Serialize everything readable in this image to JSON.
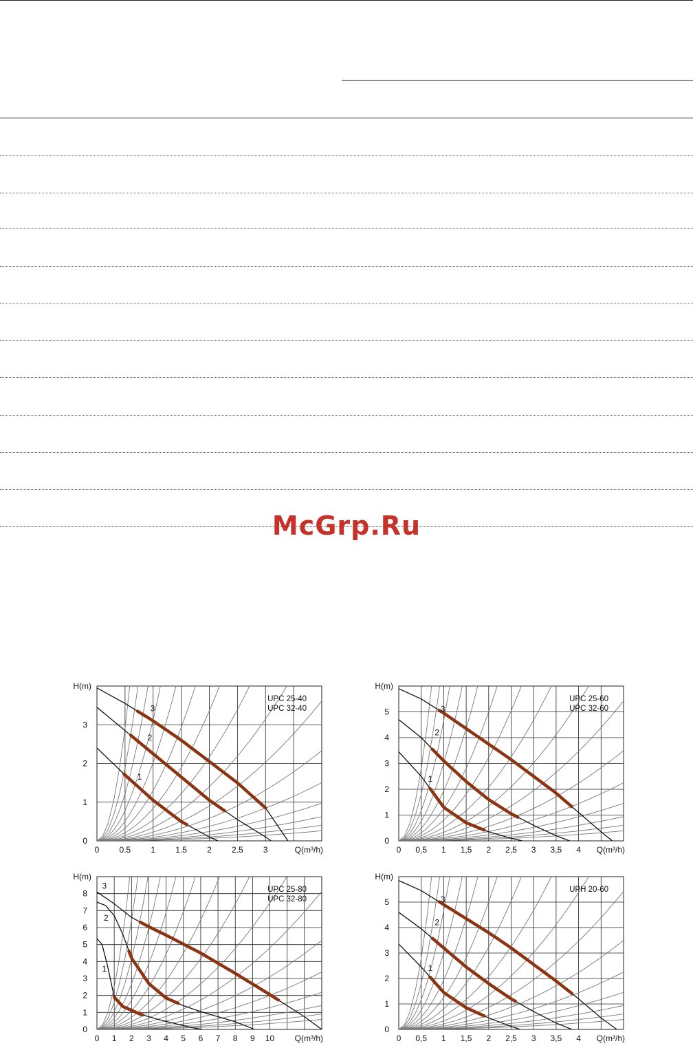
{
  "watermark": "McGrp.Ru",
  "colors": {
    "curve": "#111111",
    "system_line": "#777777",
    "working_band": "#8a3412",
    "grid": "#222222"
  },
  "chart_data": [
    {
      "type": "line",
      "title": "UPC 25-40\nUPC 32-40",
      "ylabel": "H(m)",
      "xlabel": "Q(m³/h)",
      "xlim": [
        0,
        4
      ],
      "ylim": [
        0,
        4.0
      ],
      "xticks": [
        0,
        0.5,
        1,
        1.5,
        2,
        2.5,
        3
      ],
      "xtick_labels": [
        "0",
        "0.5",
        "1",
        "1.5",
        "2",
        "2.5",
        "3"
      ],
      "yticks": [
        0,
        1,
        2,
        3
      ],
      "series": [
        {
          "name": "3",
          "x": [
            0,
            0.5,
            1,
            1.5,
            2,
            2.5,
            3,
            3.4
          ],
          "y": [
            3.95,
            3.55,
            3.1,
            2.6,
            2.05,
            1.5,
            0.85,
            0.0
          ]
        },
        {
          "name": "2",
          "x": [
            0,
            0.5,
            1,
            1.5,
            2,
            2.5,
            3,
            3.1
          ],
          "y": [
            3.45,
            2.85,
            2.25,
            1.65,
            1.05,
            0.55,
            0.1,
            0.0
          ]
        },
        {
          "name": "1",
          "x": [
            0,
            0.5,
            1,
            1.5,
            2,
            2.15
          ],
          "y": [
            2.4,
            1.7,
            1.05,
            0.5,
            0.1,
            0.0
          ]
        }
      ],
      "bands": [
        {
          "series": "3",
          "x": [
            0.72,
            3.0
          ],
          "label_at": [
            0.95,
            3.35
          ]
        },
        {
          "series": "2",
          "x": [
            0.6,
            2.27
          ],
          "label_at": [
            0.9,
            2.6
          ]
        },
        {
          "series": "1",
          "x": [
            0.48,
            1.6
          ],
          "label_at": [
            0.72,
            1.58
          ]
        }
      ]
    },
    {
      "type": "line",
      "title": "UPC 25-60\nUPC 32-60",
      "ylabel": "H(m)",
      "xlabel": "Q(m³/h)",
      "xlim": [
        0,
        5
      ],
      "ylim": [
        0,
        6.0
      ],
      "xticks": [
        0,
        0.5,
        1,
        1.5,
        2,
        2.5,
        3,
        3.5,
        4
      ],
      "xtick_labels": [
        "0",
        "0,5",
        "1",
        "1,5",
        "2",
        "2,5",
        "3",
        "3,5",
        "4"
      ],
      "yticks": [
        0,
        1,
        2,
        3,
        4,
        5
      ],
      "series": [
        {
          "name": "3",
          "x": [
            0,
            0.5,
            1,
            1.5,
            2,
            2.5,
            3,
            3.5,
            4,
            4.5,
            4.75
          ],
          "y": [
            5.9,
            5.5,
            4.95,
            4.35,
            3.75,
            3.15,
            2.5,
            1.85,
            1.1,
            0.35,
            0.0
          ]
        },
        {
          "name": "2",
          "x": [
            0,
            0.5,
            1,
            1.5,
            2,
            2.5,
            3,
            3.5,
            3.8
          ],
          "y": [
            4.7,
            4.0,
            3.1,
            2.3,
            1.6,
            1.05,
            0.6,
            0.2,
            0.0
          ]
        },
        {
          "name": "1",
          "x": [
            0,
            0.5,
            1,
            1.5,
            2,
            2.5,
            2.75
          ],
          "y": [
            3.45,
            2.5,
            1.3,
            0.7,
            0.35,
            0.1,
            0.0
          ]
        }
      ],
      "bands": [
        {
          "series": "3",
          "x": [
            0.9,
            3.85
          ],
          "label_at": [
            0.93,
            5.0
          ]
        },
        {
          "series": "2",
          "x": [
            0.75,
            2.65
          ],
          "label_at": [
            0.8,
            4.1
          ]
        },
        {
          "series": "1",
          "x": [
            0.7,
            1.9
          ],
          "label_at": [
            0.65,
            2.3
          ]
        }
      ]
    },
    {
      "type": "line",
      "title": "UPC 25-80\nUPC 32-80",
      "ylabel": "H(m)",
      "xlabel": "Q(m³/h)",
      "xlim": [
        0,
        13
      ],
      "ylim": [
        0,
        9.0
      ],
      "xticks": [
        0,
        1,
        2,
        3,
        4,
        5,
        6,
        7,
        8,
        9,
        10
      ],
      "xtick_labels": [
        "0",
        "1",
        "2",
        "3",
        "4",
        "5",
        "6",
        "7",
        "8",
        "9",
        "10"
      ],
      "yticks": [
        0,
        1,
        2,
        3,
        4,
        5,
        6,
        7,
        8
      ],
      "series": [
        {
          "name": "3",
          "x": [
            0,
            1,
            2,
            3,
            4,
            6,
            8,
            10,
            12,
            13
          ],
          "y": [
            8.1,
            7.4,
            6.6,
            6.05,
            5.55,
            4.5,
            3.3,
            2.05,
            0.75,
            0.0
          ]
        },
        {
          "name": "2",
          "x": [
            0,
            0.5,
            1,
            1.5,
            2,
            3,
            4,
            5,
            6,
            7,
            8,
            9,
            9.1
          ],
          "y": [
            7.5,
            7.3,
            6.7,
            5.6,
            4.2,
            2.7,
            1.85,
            1.4,
            1.05,
            0.75,
            0.45,
            0.05,
            0.0
          ]
        },
        {
          "name": "1",
          "x": [
            0,
            0.3,
            0.6,
            1.0,
            1.5,
            2.5,
            3.5,
            4.5,
            5.5,
            6.1
          ],
          "y": [
            5.35,
            5.0,
            3.8,
            1.9,
            1.35,
            0.9,
            0.6,
            0.35,
            0.1,
            0.0
          ]
        }
      ],
      "bands": [
        {
          "series": "3",
          "x": [
            2.5,
            10.5
          ],
          "label_at": [
            0.3,
            8.3
          ]
        },
        {
          "series": "2",
          "x": [
            1.85,
            4.7
          ],
          "label_at": [
            0.4,
            6.4
          ]
        },
        {
          "series": "1",
          "x": [
            1.0,
            2.65
          ],
          "label_at": [
            0.3,
            3.4
          ]
        }
      ]
    },
    {
      "type": "line",
      "title": "UPH 20-60",
      "ylabel": "H(m)",
      "xlabel": "Q(m³/h)",
      "xlim": [
        0,
        5
      ],
      "ylim": [
        0,
        6.0
      ],
      "xticks": [
        0,
        0.5,
        1,
        1.5,
        2,
        2.5,
        3,
        3.5,
        4
      ],
      "xtick_labels": [
        "0",
        "0,5",
        "1",
        "1,5",
        "2",
        "2,5",
        "3",
        "3,5",
        "4"
      ],
      "yticks": [
        0,
        1,
        2,
        3,
        4,
        5
      ],
      "series": [
        {
          "name": "3",
          "x": [
            0,
            0.5,
            1,
            1.5,
            2,
            2.5,
            3,
            3.5,
            4,
            4.5,
            4.85
          ],
          "y": [
            5.85,
            5.45,
            4.9,
            4.35,
            3.8,
            3.2,
            2.55,
            1.9,
            1.2,
            0.45,
            0.0
          ]
        },
        {
          "name": "2",
          "x": [
            0,
            0.5,
            1,
            1.5,
            2,
            2.5,
            3,
            3.5,
            3.85
          ],
          "y": [
            4.6,
            3.95,
            3.2,
            2.45,
            1.8,
            1.2,
            0.7,
            0.25,
            0.0
          ]
        },
        {
          "name": "1",
          "x": [
            0,
            0.5,
            1,
            1.5,
            2,
            2.5,
            2.7
          ],
          "y": [
            3.35,
            2.45,
            1.45,
            0.85,
            0.45,
            0.12,
            0.0
          ]
        }
      ],
      "bands": [
        {
          "series": "3",
          "x": [
            0.9,
            3.85
          ],
          "label_at": [
            0.93,
            5.0
          ]
        },
        {
          "series": "2",
          "x": [
            0.75,
            2.6
          ],
          "label_at": [
            0.8,
            4.1
          ]
        },
        {
          "series": "1",
          "x": [
            0.7,
            1.9
          ],
          "label_at": [
            0.65,
            2.3
          ]
        }
      ]
    }
  ]
}
